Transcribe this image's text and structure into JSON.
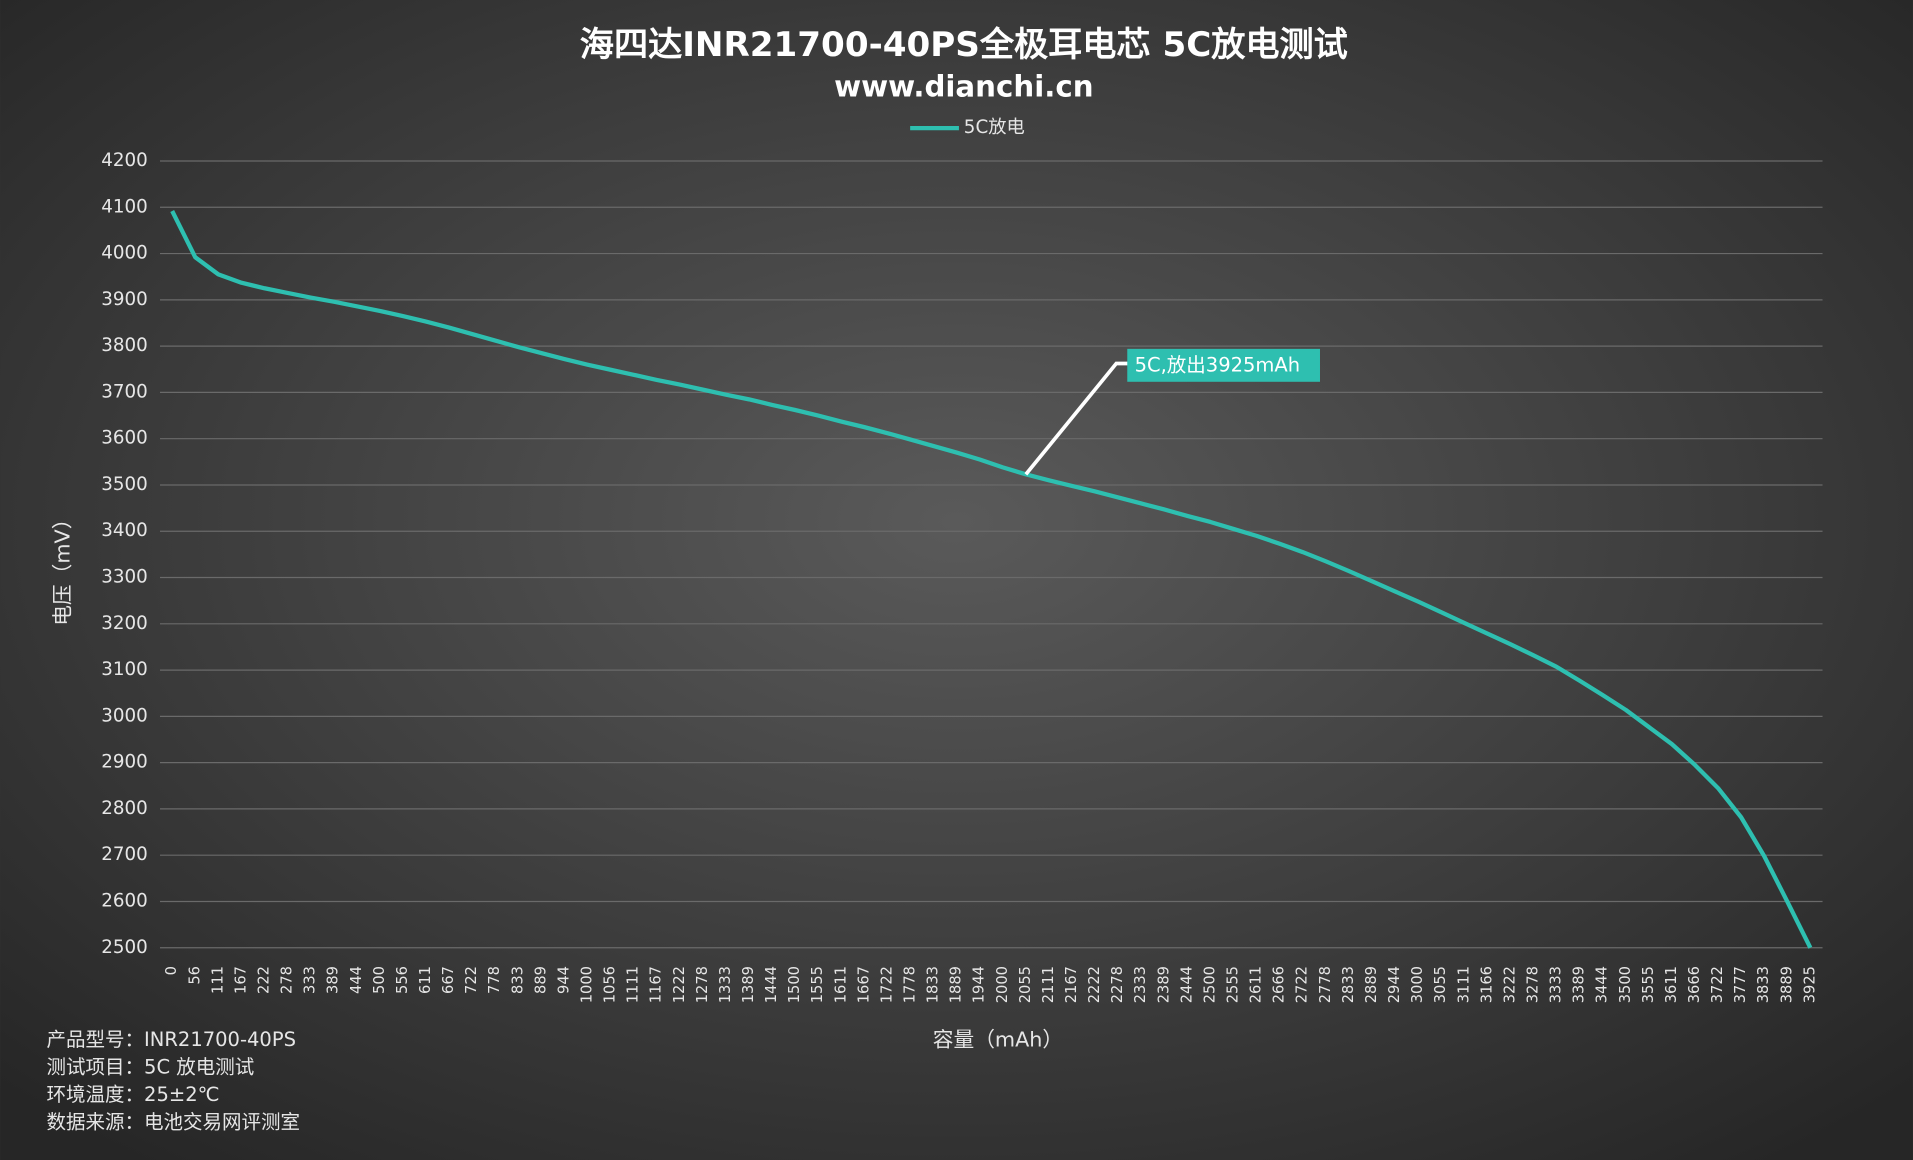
{
  "chart_data": {
    "type": "line",
    "title": "海四达INR21700-40PS全极耳电芯 5C放电测试",
    "subtitle": "www.dianchi.cn",
    "y_label": "电压（mV）",
    "x_label": "容量（mAh）",
    "annotation": "5C,放出3925mAh",
    "notes": [
      "产品型号：INR21700-40PS",
      "测试项目：5C 放电测试",
      "环境温度：25±2℃",
      "数据来源：电池交易网评测室"
    ],
    "categories": [
      0,
      56,
      111,
      167,
      222,
      278,
      333,
      389,
      444,
      500,
      556,
      611,
      667,
      722,
      778,
      833,
      889,
      944,
      1000,
      1056,
      1111,
      1167,
      1222,
      1278,
      1333,
      1389,
      1444,
      1500,
      1555,
      1611,
      1667,
      1722,
      1778,
      1833,
      1889,
      1944,
      2000,
      2055,
      2111,
      2167,
      2222,
      2278,
      2333,
      2389,
      2444,
      2500,
      2555,
      2611,
      2666,
      2722,
      2778,
      2833,
      2889,
      2944,
      3000,
      3055,
      3111,
      3166,
      3222,
      3278,
      3333,
      3389,
      3444,
      3500,
      3555,
      3611,
      3666,
      3722,
      3777,
      3833,
      3889,
      3925
    ],
    "series": [
      {
        "name": "5C放电",
        "color": "#2ebfb0",
        "values": [
          4092,
          3992,
          3955,
          3937,
          3925,
          3915,
          3905,
          3896,
          3886,
          3876,
          3865,
          3853,
          3840,
          3826,
          3812,
          3798,
          3785,
          3772,
          3760,
          3749,
          3738,
          3727,
          3717,
          3706,
          3695,
          3685,
          3673,
          3662,
          3650,
          3637,
          3625,
          3612,
          3598,
          3584,
          3570,
          3555,
          3538,
          3523,
          3510,
          3498,
          3486,
          3473,
          3460,
          3447,
          3433,
          3420,
          3405,
          3390,
          3373,
          3355,
          3335,
          3314,
          3292,
          3270,
          3248,
          3225,
          3202,
          3179,
          3156,
          3132,
          3107,
          3077,
          3046,
          3014,
          2977,
          2940,
          2895,
          2845,
          2782,
          2698,
          2600,
          2500
        ]
      }
    ],
    "ylim": [
      2500,
      4200
    ],
    "yticks": [
      2500,
      2600,
      2700,
      2800,
      2900,
      3000,
      3100,
      3200,
      3300,
      3400,
      3500,
      3600,
      3700,
      3800,
      3900,
      4000,
      4100,
      4200
    ],
    "grid": true,
    "legend": "top"
  }
}
